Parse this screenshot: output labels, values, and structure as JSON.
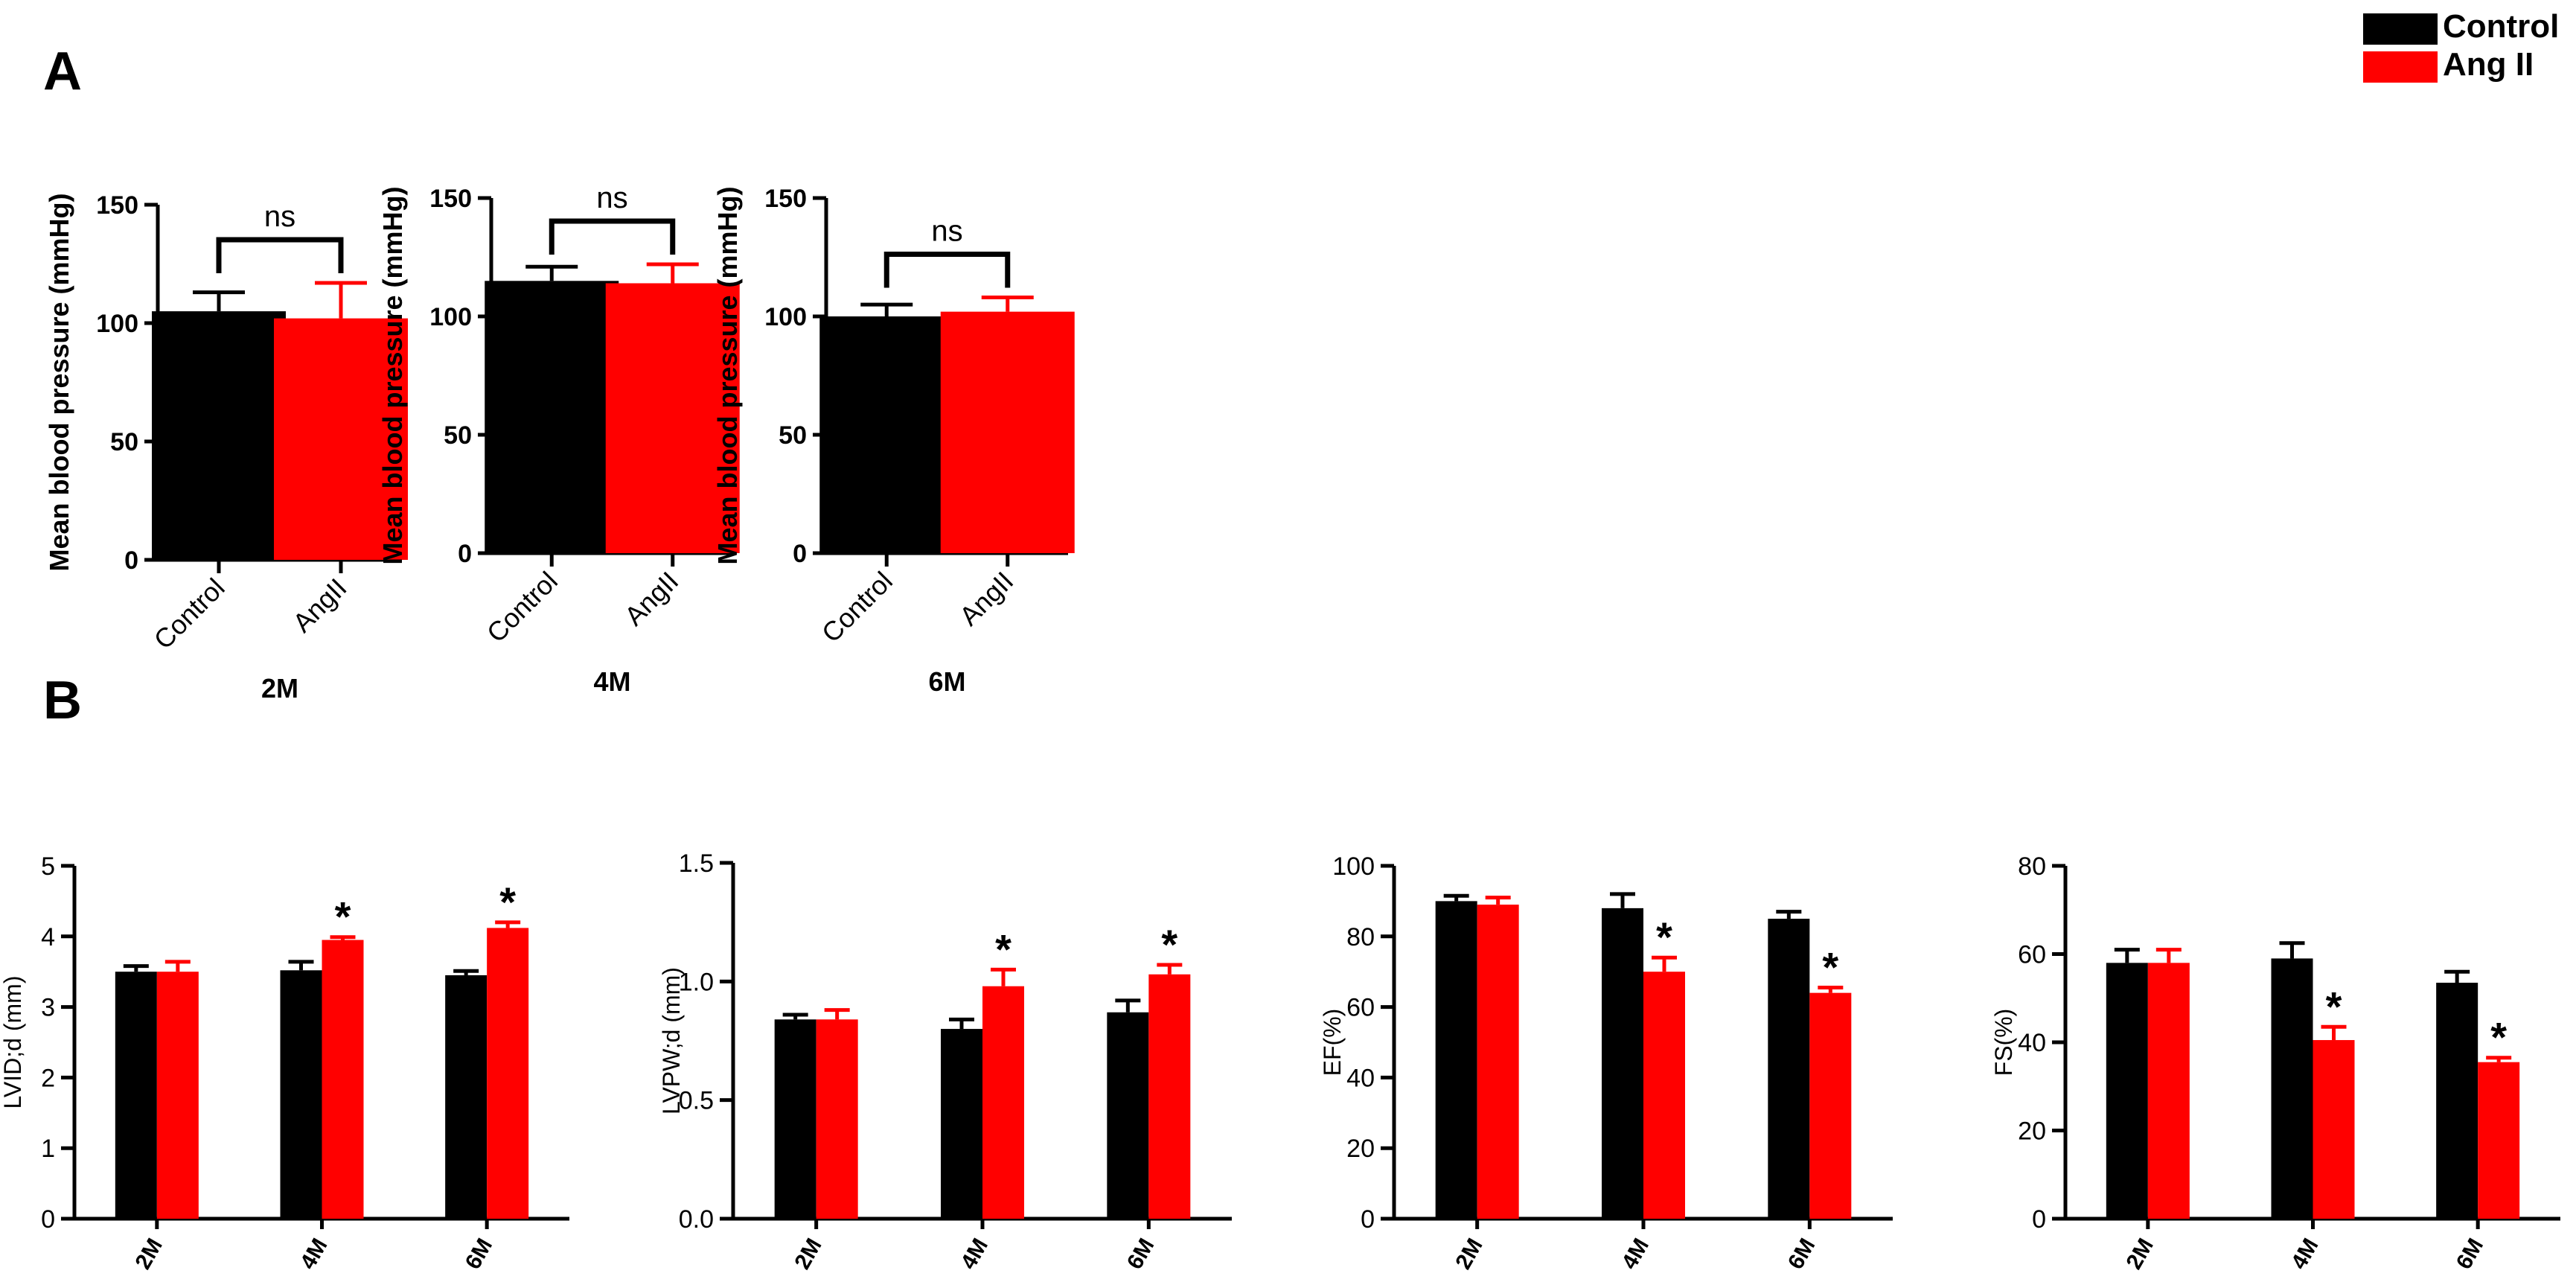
{
  "panel_labels": [
    "A",
    "B"
  ],
  "legend": {
    "entries": [
      {
        "label": "Control",
        "color": "#000000"
      },
      {
        "label": "Ang II",
        "color": "#ff0000"
      }
    ]
  },
  "colors": {
    "control": "#000000",
    "angii": "#ff0000"
  },
  "chart_data": [
    {
      "id": "A1",
      "type": "bar",
      "panel": "A",
      "title": "2M",
      "ylabel": "Mean blood pressure (mmHg)",
      "categories": [
        "Control",
        "AngII"
      ],
      "values": [
        105,
        102
      ],
      "errors": [
        8,
        15
      ],
      "ylim": [
        0,
        150
      ],
      "yticks": [
        0,
        50,
        100,
        150
      ],
      "significance": {
        "label": "ns",
        "between": [
          0,
          1
        ]
      }
    },
    {
      "id": "A2",
      "type": "bar",
      "panel": "A",
      "title": "4M",
      "ylabel": "Mean blood pressure (mmHg)",
      "categories": [
        "Control",
        "AngII"
      ],
      "values": [
        115,
        114
      ],
      "errors": [
        6,
        8
      ],
      "ylim": [
        0,
        150
      ],
      "yticks": [
        0,
        50,
        100,
        150
      ],
      "significance": {
        "label": "ns",
        "between": [
          0,
          1
        ]
      }
    },
    {
      "id": "A3",
      "type": "bar",
      "panel": "A",
      "title": "6M",
      "ylabel": "Mean blood pressure (mmHg)",
      "categories": [
        "Control",
        "AngII"
      ],
      "values": [
        100,
        102
      ],
      "errors": [
        5,
        6
      ],
      "ylim": [
        0,
        150
      ],
      "yticks": [
        0,
        50,
        100,
        150
      ],
      "significance": {
        "label": "ns",
        "between": [
          0,
          1
        ]
      }
    },
    {
      "id": "B1",
      "type": "bar",
      "panel": "B",
      "ylabel": "LVID;d (mm)",
      "categories": [
        "2M",
        "4M",
        "6M"
      ],
      "series": [
        {
          "name": "Control",
          "values": [
            3.5,
            3.52,
            3.45
          ],
          "errors": [
            0.08,
            0.12,
            0.06
          ]
        },
        {
          "name": "Ang II",
          "values": [
            3.5,
            3.95,
            4.12
          ],
          "errors": [
            0.14,
            0.04,
            0.08
          ]
        }
      ],
      "ylim": [
        0,
        5
      ],
      "yticks": [
        "0",
        "1",
        "2",
        "3",
        "4",
        "5"
      ],
      "significance": [
        "",
        "*",
        "*"
      ]
    },
    {
      "id": "B2",
      "type": "bar",
      "panel": "B",
      "ylabel": "LVPW;d (mm)",
      "categories": [
        "2M",
        "4M",
        "6M"
      ],
      "series": [
        {
          "name": "Control",
          "values": [
            0.84,
            0.8,
            0.87
          ],
          "errors": [
            0.02,
            0.04,
            0.05
          ]
        },
        {
          "name": "Ang II",
          "values": [
            0.84,
            0.98,
            1.03
          ],
          "errors": [
            0.04,
            0.07,
            0.04
          ]
        }
      ],
      "ylim": [
        0,
        1.5
      ],
      "yticks": [
        "0.0",
        "0.5",
        "1.0",
        "1.5"
      ],
      "significance": [
        "",
        "*",
        "*"
      ]
    },
    {
      "id": "B3",
      "type": "bar",
      "panel": "B",
      "ylabel": "EF(%)",
      "categories": [
        "2M",
        "4M",
        "6M"
      ],
      "series": [
        {
          "name": "Control",
          "values": [
            90,
            88,
            85
          ],
          "errors": [
            1.5,
            4,
            2
          ]
        },
        {
          "name": "Ang II",
          "values": [
            89,
            70,
            64
          ],
          "errors": [
            2,
            4,
            1.5
          ]
        }
      ],
      "ylim": [
        0,
        100
      ],
      "yticks": [
        "0",
        "20",
        "40",
        "60",
        "80",
        "100"
      ],
      "significance": [
        "",
        "*",
        "*"
      ]
    },
    {
      "id": "B4",
      "type": "bar",
      "panel": "B",
      "ylabel": "FS(%)",
      "categories": [
        "2M",
        "4M",
        "6M"
      ],
      "series": [
        {
          "name": "Control",
          "values": [
            58,
            59,
            53.5
          ],
          "errors": [
            3,
            3.5,
            2.5
          ]
        },
        {
          "name": "Ang II",
          "values": [
            58,
            40.5,
            35.5
          ],
          "errors": [
            3,
            3,
            1
          ]
        }
      ],
      "ylim": [
        0,
        80
      ],
      "yticks": [
        "0",
        "20",
        "40",
        "60",
        "80"
      ],
      "significance": [
        "",
        "*",
        "*"
      ]
    }
  ]
}
